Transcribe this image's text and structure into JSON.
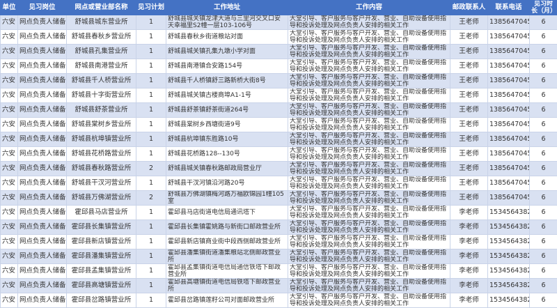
{
  "colors": {
    "header_bg": "#4472C4",
    "row_alt": "#D9E1F2"
  },
  "headers": [
    "单位",
    "见习岗位",
    "网点或营业部名称",
    "见习计划",
    "工作地址",
    "工作内容",
    "邮政联系人",
    "联系电话",
    "见习时长（月）"
  ],
  "rows": [
    [
      "六安",
      "网点负责人储备",
      "舒城县城东营业所",
      "1",
      "舒城县城关镇龙津大道与三里河交叉口安天幸福里S2幢一层103-106号",
      "大堂引导、客户服务与客户开发、营业、自助设备使用指导和投诉处理及网点负责人安排的相关工作",
      "王老师",
      "13856470459",
      "6"
    ],
    [
      "六安",
      "网点负责人储备",
      "舒城县春秋乡营业所",
      "1",
      "舒城县春秋乡街道粮站对面",
      "大堂引导、客户服务与客户开发、营业、自助设备使用指导和投诉处理及网点负责人安排的相关工作",
      "王老师",
      "13856470459",
      "6"
    ],
    [
      "六安",
      "网点负责人储备",
      "舒城县孔集营业所",
      "1",
      "舒城县城关镇孔集九墩小学对面",
      "大堂引导、客户服务与客户开发、营业、自助设备使用指导和投诉处理及网点负责人安排的相关工作",
      "王老师",
      "13856470459",
      "6"
    ],
    [
      "六安",
      "网点负责人储备",
      "舒城县南港营业所",
      "1",
      "舒城县南港镇合安路154号",
      "大堂引导、客户服务与客户开发、营业、自助设备使用指导和投诉处理及网点负责人安排的相关工作",
      "王老师",
      "13856470459",
      "6"
    ],
    [
      "六安",
      "网点负责人储备",
      "舒城县千人桥营业所",
      "1",
      "舒城县千人桥镇舒三路新桥大街8号",
      "大堂引导、客户服务与客户开发、营业、自助设备使用指导和投诉处理及网点负责人安排的相关工作",
      "王老师",
      "13856470459",
      "6"
    ],
    [
      "六安",
      "网点负责人储备",
      "舒城县十字街营业所",
      "1",
      "舒城县城关镇古楼商埠A1-1号",
      "大堂引导、客户服务与客户开发、营业、自助设备使用指导和投诉处理及网点负责人安排的相关工作",
      "王老师",
      "13856470459",
      "6"
    ],
    [
      "六安",
      "网点负责人储备",
      "舒城县舒茶营业所",
      "1",
      "舒城县舒茶镇舒茶街道264号",
      "大堂引导、客户服务与客户开发、营业、自助设备使用指导和投诉处理及网点负责人安排的相关工作",
      "王老师",
      "13856470459",
      "6"
    ],
    [
      "六安",
      "网点负责人储备",
      "舒城县棠树乡营业所",
      "1",
      "舒城县棠树乡西塘街道9号",
      "大堂引导、客户服务与客户开发、营业、自助设备使用指导和投诉处理及网点负责人安排的相关工作",
      "王老师",
      "13856470459",
      "6"
    ],
    [
      "六安",
      "网点负责人储备",
      "舒城县杭埠镇营业所",
      "1",
      "舒城县杭埠镇东胜路10号",
      "大堂引导、客户服务与客户开发、营业、自助设备使用指导和投诉处理及网点负责人安排的相关工作",
      "王老师",
      "13856470459",
      "6"
    ],
    [
      "六安",
      "网点负责人储备",
      "舒城县花桥路营业所",
      "1",
      "舒城县花桥路128--130号",
      "大堂引导、客户服务与客户开发、营业、自助设备使用指导和投诉处理及网点负责人安排的相关工作",
      "王老师",
      "13856470459",
      "6"
    ],
    [
      "六安",
      "网点负责人储备",
      "舒城县春秋路营业所",
      "2",
      "舒城县城关镇春秋路邮政局营业厅",
      "大堂引导、客户服务与客户开发、营业、自助设备使用指导和投诉处理及网点负责人安排的相关工作",
      "王老师",
      "13856470459",
      "6"
    ],
    [
      "六安",
      "网点负责人储备",
      "舒城县干汊河营业所",
      "1",
      "舒城县干汊河镇沿河路20号",
      "大堂引导、客户服务与客户开发、营业、自助设备使用指导和投诉处理及网点负责人安排的相关工作",
      "王老师",
      "13856470459",
      "6"
    ],
    [
      "六安",
      "网点负责人储备",
      "舒城县万佛湖营业所",
      "2",
      "舒城县万佛湖镇梅河路万福欧锦园1幢105室",
      "大堂引导、客户服务与客户开发、营业、自助设备使用指导和投诉处理及网点负责人安排的相关工作",
      "王老师",
      "13856470459",
      "6"
    ],
    [
      "六安",
      "网点负责人储备",
      "霍邱县马店营业所",
      "1",
      "霍邱县马店街道电信局通讯塔下",
      "大堂引导、客户服务与客户开发、营业、自助设备使用指导和投诉处理及网点负责人安排的相关工作",
      "李老师",
      "15345643821",
      "6"
    ],
    [
      "六安",
      "网点负责人储备",
      "霍邱县长集镇营业所",
      "1",
      "霍邱县长集镇霍姚路与新街口邮政营业所",
      "大堂引导、客户服务与客户开发、营业、自助设备使用指导和投诉处理及网点负责人安排的相关工作",
      "李老师",
      "15345643821",
      "6"
    ],
    [
      "六安",
      "网点负责人储备",
      "霍邱县新店镇营业所",
      "1",
      "霍邱县新店镇商业街中段西侧邮政营业所",
      "大堂引导、客户服务与客户开发、营业、自助设备使用指导和投诉处理及网点负责人安排的相关工作",
      "李老师",
      "15345643821",
      "6"
    ],
    [
      "六安",
      "网点负责人储备",
      "霍邱县潘集镇营业所",
      "1",
      "霍邱县潘集镇街道潘集粮站北侧邮政营业所",
      "大堂引导、客户服务与客户开发、营业、自助设备使用指导和投诉处理及网点负责人安排的相关工作",
      "李老师",
      "15345643821",
      "6"
    ],
    [
      "六安",
      "网点负责人储备",
      "霍邱县孟集镇营业所",
      "1",
      "霍邱县孟集镇街道电信局通信铁塔下邮政营业所",
      "大堂引导、客户服务与客户开发、营业、自助设备使用指导和投诉处理及网点负责人安排的相关工作",
      "李老师",
      "15345643821",
      "6"
    ],
    [
      "六安",
      "网点负责人储备",
      "霍邱县高塘镇营业所",
      "1",
      "霍邱县高塘镇街道电信局铁塔下邮政营业所",
      "大堂引导、客户服务与客户开发、营业、自助设备使用指导和投诉处理及网点负责人安排的相关工作",
      "李老师",
      "15345643821",
      "6"
    ],
    [
      "六安",
      "网点负责人储备",
      "霍邱县岔路镇营业所",
      "1",
      "霍邱县岔路镇莲籽公司对面邮政营业所",
      "大堂引导、客户服务与客户开发、营业、自助设备使用指导和投诉处理及网点负责人安排的相关工作",
      "李老师",
      "15345643821",
      "6"
    ]
  ]
}
